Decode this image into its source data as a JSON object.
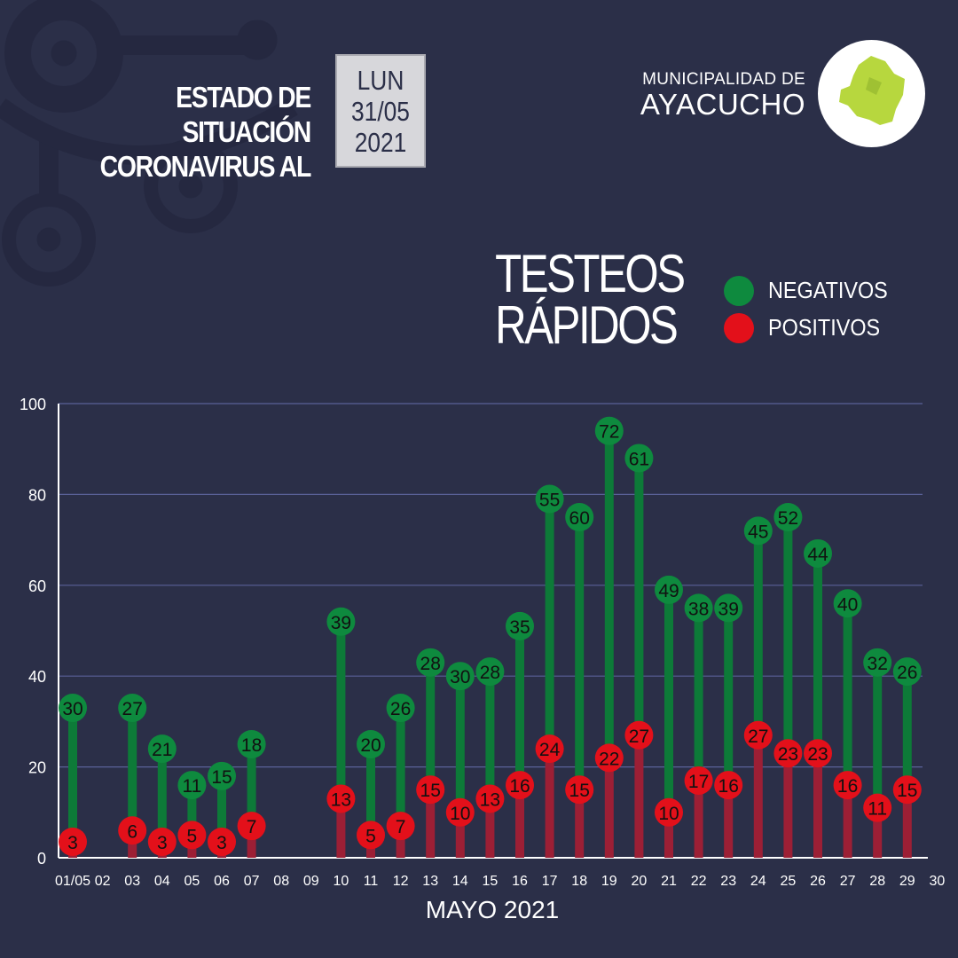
{
  "header": {
    "title_line1": "ESTADO DE SITUACIÓN",
    "title_line2": "CORONAVIRUS AL",
    "date_day": "LUN",
    "date_daymonth": "31/05",
    "date_year": "2021",
    "org_line1": "MUNICIPALIDAD DE",
    "org_line2": "AYACUCHO",
    "logo_icon": "ayacucho-map-logo"
  },
  "colors": {
    "background": "#2b2f48",
    "negativos": "#0e8a3e",
    "positivos": "#e3101a",
    "logo_map": "#b7d73e"
  },
  "chart_data": {
    "type": "bar",
    "title": "TESTEOS RÁPIDOS",
    "title_lines": [
      "TESTEOS",
      "RÁPIDOS"
    ],
    "xlabel": "MAYO 2021",
    "ylabel": "",
    "ylim": [
      0,
      100
    ],
    "yticks": [
      0,
      20,
      40,
      60,
      80,
      100
    ],
    "grid": true,
    "legend": "top-right",
    "stacked": true,
    "categories": [
      "01/05",
      "02",
      "03",
      "04",
      "05",
      "06",
      "07",
      "08",
      "09",
      "10",
      "11",
      "12",
      "13",
      "14",
      "15",
      "16",
      "17",
      "18",
      "19",
      "20",
      "21",
      "22",
      "23",
      "24",
      "25",
      "26",
      "27",
      "28",
      "29",
      "30"
    ],
    "series": [
      {
        "name": "POSITIVOS",
        "color": "#e3101a",
        "values": [
          3,
          null,
          6,
          3,
          5,
          3,
          7,
          null,
          null,
          13,
          5,
          7,
          15,
          10,
          13,
          16,
          24,
          15,
          22,
          27,
          10,
          17,
          16,
          27,
          23,
          23,
          16,
          11,
          15,
          null
        ]
      },
      {
        "name": "NEGATIVOS",
        "color": "#0e8a3e",
        "values": [
          30,
          null,
          27,
          21,
          11,
          15,
          18,
          null,
          null,
          39,
          20,
          26,
          28,
          30,
          28,
          35,
          55,
          60,
          72,
          61,
          49,
          38,
          39,
          45,
          52,
          44,
          40,
          32,
          26,
          null
        ]
      }
    ]
  }
}
